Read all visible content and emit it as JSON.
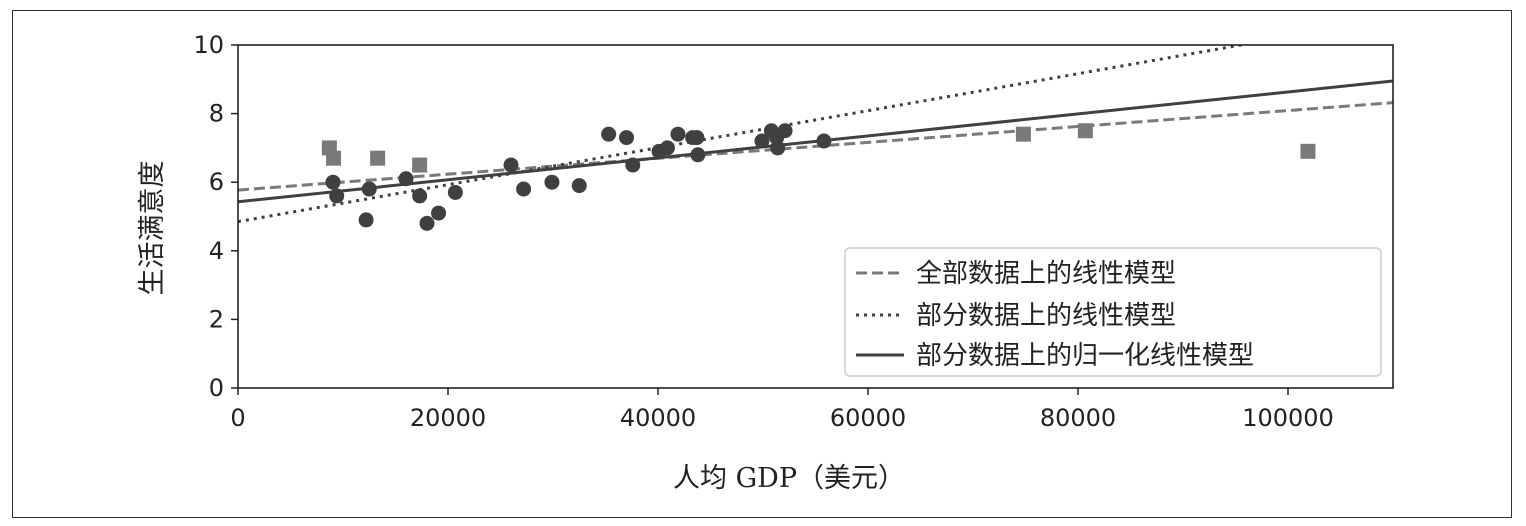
{
  "chart_data": {
    "type": "scatter",
    "xlabel": "人均 GDP（美元）",
    "ylabel": "生活满意度",
    "xlim": [
      0,
      110000
    ],
    "ylim": [
      0,
      10
    ],
    "x_ticks": [
      "0",
      "20000",
      "40000",
      "60000",
      "80000",
      "100000"
    ],
    "y_ticks": [
      "0",
      "2",
      "4",
      "6",
      "8",
      "10"
    ],
    "grid": false,
    "legend_placement": "lower-right",
    "colors": {
      "points": "#404040",
      "outliers": "#7a7a7a",
      "dashed": "#7a7a7a",
      "dotted": "#404040",
      "solid": "#404040"
    },
    "series": [
      {
        "marker": "circle",
        "points": [
          [
            9050,
            6.0
          ],
          [
            9400,
            5.6
          ],
          [
            12200,
            4.9
          ],
          [
            12500,
            5.8
          ],
          [
            16000,
            6.1
          ],
          [
            17300,
            5.6
          ],
          [
            18000,
            4.8
          ],
          [
            19100,
            5.1
          ],
          [
            20700,
            5.7
          ],
          [
            26000,
            6.5
          ],
          [
            27200,
            5.8
          ],
          [
            29900,
            6.0
          ],
          [
            32500,
            5.9
          ],
          [
            35300,
            7.4
          ],
          [
            37000,
            7.3
          ],
          [
            37600,
            6.5
          ],
          [
            40100,
            6.9
          ],
          [
            40900,
            7.0
          ],
          [
            41900,
            7.4
          ],
          [
            43300,
            7.3
          ],
          [
            43700,
            7.3
          ],
          [
            43800,
            6.8
          ],
          [
            49900,
            7.2
          ],
          [
            50800,
            7.5
          ],
          [
            51300,
            7.3
          ],
          [
            51400,
            7.0
          ],
          [
            52100,
            7.5
          ],
          [
            55800,
            7.2
          ]
        ]
      },
      {
        "marker": "square",
        "points": [
          [
            8700,
            7.0
          ],
          [
            9100,
            6.7
          ],
          [
            13300,
            6.7
          ],
          [
            17300,
            6.5
          ],
          [
            74800,
            7.4
          ],
          [
            80700,
            7.5
          ],
          [
            101900,
            6.9
          ]
        ]
      },
      {
        "name": "全部数据上的线性模型",
        "style": "dashed",
        "line": [
          [
            0,
            5.77
          ],
          [
            110000,
            8.32
          ]
        ]
      },
      {
        "name": "部分数据上的线性模型",
        "style": "dotted",
        "line": [
          [
            0,
            4.85
          ],
          [
            110000,
            10.78
          ]
        ]
      },
      {
        "name": "部分数据上的归一化线性模型",
        "style": "solid",
        "line": [
          [
            0,
            5.43
          ],
          [
            110000,
            8.95
          ]
        ]
      }
    ]
  }
}
